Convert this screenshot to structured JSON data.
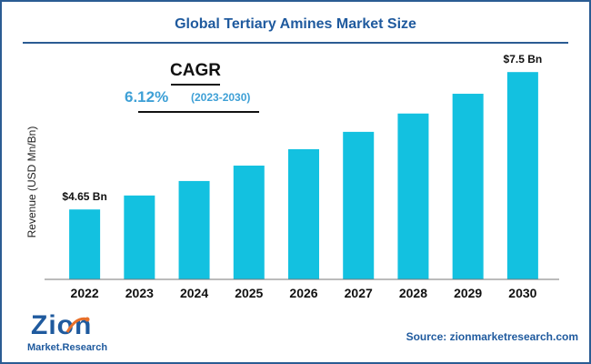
{
  "title": "Global Tertiary Amines Market Size",
  "cagr": {
    "label": "CAGR",
    "value": "6.12%",
    "range": "(2023-2030)"
  },
  "source": "Source: zionmarketresearch.com",
  "logo": {
    "brand": "Zion",
    "sub": "Market.Research"
  },
  "colors": {
    "bar": "#13c1e0",
    "accent": "#1f5a9e",
    "cagr": "#3ea0d6"
  },
  "chart_data": {
    "type": "bar",
    "title": "Global Tertiary Amines Market Size",
    "xlabel": "",
    "ylabel": "Revenue (USD Mn/Bn)",
    "categories": [
      "2022",
      "2023",
      "2024",
      "2025",
      "2026",
      "2027",
      "2028",
      "2029",
      "2030"
    ],
    "values": [
      4.65,
      4.94,
      5.24,
      5.56,
      5.9,
      6.26,
      6.64,
      7.05,
      7.5
    ],
    "ylim": [
      3.2,
      7.9
    ],
    "grid": false,
    "data_labels": [
      {
        "index": 0,
        "text": "$4.65 Bn"
      },
      {
        "index": 8,
        "text": "$7.5 Bn"
      }
    ]
  }
}
